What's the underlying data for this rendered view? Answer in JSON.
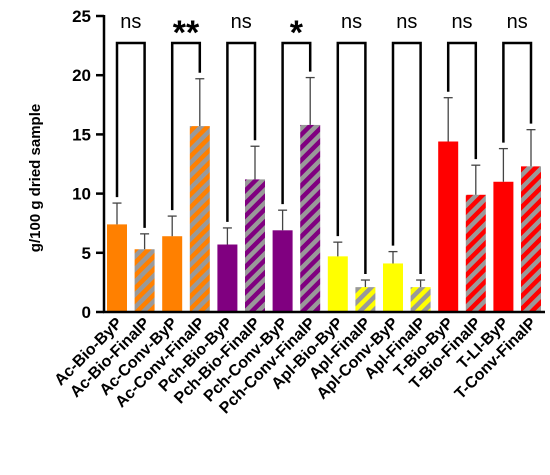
{
  "chart_data": {
    "type": "bar",
    "ylabel": "g/100 g dried sample",
    "ylim": [
      0,
      25
    ],
    "yticks": [
      0,
      5,
      10,
      15,
      20,
      25
    ],
    "grid": false,
    "categories": [
      "Ac-Bio-ByP",
      "Ac-Bio-FinalP",
      "Ac-Conv-ByP",
      "Ac-Conv-FinalP",
      "Pch-Bio-ByP",
      "Pch-Bio-FinalP",
      "Pch-Conv-ByP",
      "Pch-Conv-FinalP",
      "Apl-Bio-ByP",
      "Apl-FinalP",
      "Apl-Conv-ByP",
      "Apl-FinalP",
      "T-Bio-ByP",
      "T-Bio-FinalP",
      "T-LI-ByP",
      "T-Conv-FinalP"
    ],
    "values": [
      7.4,
      5.3,
      6.4,
      15.7,
      5.7,
      11.2,
      6.9,
      15.8,
      4.7,
      2.1,
      4.1,
      2.1,
      14.4,
      9.9,
      11.0,
      12.3
    ],
    "errors": [
      1.8,
      1.3,
      1.7,
      4.0,
      1.4,
      2.8,
      1.7,
      4.0,
      1.2,
      0.6,
      1.0,
      0.6,
      3.7,
      2.5,
      2.8,
      3.1
    ],
    "colors": [
      "#FF8000",
      "#FF8000",
      "#FF8000",
      "#FF8000",
      "#800080",
      "#800080",
      "#800080",
      "#800080",
      "#FFFF00",
      "#FFFF00",
      "#FFFF00",
      "#FFFF00",
      "#FF0000",
      "#FF0000",
      "#FF0000",
      "#FF0000"
    ],
    "hatched": [
      false,
      true,
      false,
      true,
      false,
      true,
      false,
      true,
      false,
      true,
      false,
      true,
      false,
      true,
      false,
      true
    ],
    "hatch_color": "#999999",
    "comparisons": [
      {
        "pair": [
          0,
          1
        ],
        "label": "ns"
      },
      {
        "pair": [
          2,
          3
        ],
        "label": "**"
      },
      {
        "pair": [
          4,
          5
        ],
        "label": "ns"
      },
      {
        "pair": [
          6,
          7
        ],
        "label": "*"
      },
      {
        "pair": [
          8,
          9
        ],
        "label": "ns"
      },
      {
        "pair": [
          10,
          11
        ],
        "label": "ns"
      },
      {
        "pair": [
          12,
          13
        ],
        "label": "ns"
      },
      {
        "pair": [
          14,
          15
        ],
        "label": "ns"
      }
    ]
  }
}
